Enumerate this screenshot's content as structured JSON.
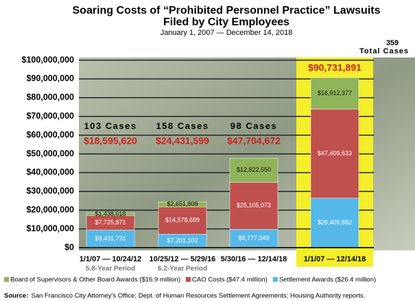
{
  "chart_data": {
    "type": "bar",
    "stacked": true,
    "title": [
      "Soaring Costs of “Prohibited Personnel Practice” Lawsuits",
      "Filed by City Employees"
    ],
    "subtitle": "January 1, 2007 — December 14, 2018",
    "categories": [
      "1/1/07 — 10/24/12",
      "10/25/12 — 5/29/16",
      "5/30/16 — 12/14/18",
      "1/1/07 — 12/14/18"
    ],
    "periods": [
      "5.8-Year Period",
      "6.2-Year Period",
      null,
      null
    ],
    "case_labels": [
      "103 Cases",
      "158 Cases",
      "98 Cases",
      "359"
    ],
    "total_cases_label": "Total Cases",
    "totals": [
      18595620,
      24431599,
      47704672,
      90731891
    ],
    "total_labels": [
      "$18,595,620",
      "$24,431,599",
      "$47,704,672",
      "$90,731,891"
    ],
    "series": [
      {
        "name": "Board of Supervisors & Other Board Awards ($16.9 million)",
        "color": "#8fb45a",
        "values": [
          1438018,
          2651808,
          12822550,
          16912377
        ],
        "value_labels": [
          "$1,438,018",
          "$2,651,808",
          "$12,822,550",
          "$16,912,377"
        ]
      },
      {
        "name": "CAO Costs ($47.4 million)",
        "color": "#c0504d",
        "values": [
          7725871,
          14578689,
          25105073,
          47409633
        ],
        "value_labels": [
          "$7,725,871",
          "$14,578,689",
          "$25,105,073",
          "$47,409,633"
        ]
      },
      {
        "name": "Settlement Awards ($26.4 million)",
        "color": "#55b8e8",
        "values": [
          9431731,
          7201102,
          9777049,
          26409882
        ],
        "value_labels": [
          "$9,431,731",
          "$7,201,102",
          "$9,777,049",
          "$26,409,882"
        ]
      }
    ],
    "ylim": [
      0,
      100000000
    ],
    "yticks": [
      {
        "value": 0,
        "label": "$0"
      },
      {
        "value": 10000000,
        "label": "$10,000,000"
      },
      {
        "value": 20000000,
        "label": "$20,000,000"
      },
      {
        "value": 30000000,
        "label": "$30,000,000"
      },
      {
        "value": 40000000,
        "label": "$40,000,000"
      },
      {
        "value": 50000000,
        "label": "$50,000,000"
      },
      {
        "value": 60000000,
        "label": "$60,000,000"
      },
      {
        "value": 70000000,
        "label": "$70,000,000"
      },
      {
        "value": 80000000,
        "label": "$80,000,000"
      },
      {
        "value": 90000000,
        "label": "$90,000,000"
      },
      {
        "value": 100000000,
        "label": "$100,000,000"
      }
    ],
    "grid": true,
    "source_label": "Source:",
    "source": "San Francisco City Attorney's Office; Dept. of Human Resources Settlement Agreements; Housing Authority reports."
  }
}
